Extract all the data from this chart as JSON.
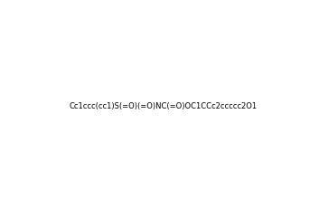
{
  "smiles": "Cc1ccc(cc1)S(=O)(=O)NC(=O)OC1CCc2ccccc2O1",
  "title": "",
  "background_color": "#ffffff",
  "bond_color": "#1a1a1a",
  "atom_colors": {
    "N": "#d4820a",
    "O": "#d4820a",
    "S": "#d4820a",
    "C": "#1a1a1a"
  },
  "figsize": [
    3.53,
    2.32
  ],
  "dpi": 100
}
